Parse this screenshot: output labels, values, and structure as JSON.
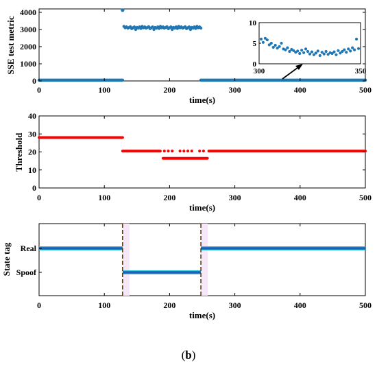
{
  "caption": {
    "prefix": "(",
    "label": "b",
    "suffix": ")"
  },
  "chart_data": [
    {
      "type": "scatter",
      "xlabel": "time(s)",
      "ylabel": "SSE test metric",
      "xlim": [
        0,
        500
      ],
      "ylim": [
        0,
        4200
      ],
      "xticks": [
        0,
        100,
        200,
        300,
        400,
        500
      ],
      "yticks": [
        0,
        1000,
        2000,
        3000,
        4000
      ],
      "color": "#1f77b4",
      "series": [
        {
          "segment": "real-1",
          "x_range": [
            0,
            128
          ],
          "y": 5
        },
        {
          "segment": "spike",
          "x": [
            128
          ],
          "y": [
            4130
          ]
        },
        {
          "segment": "spoof",
          "x_range": [
            130,
            248
          ],
          "y_approx": [
            3180,
            3100,
            3150,
            3080,
            3120,
            3160,
            3050,
            3100,
            3150,
            3000,
            3120,
            3080,
            3150,
            3060
          ]
        },
        {
          "segment": "real-2",
          "x_range": [
            248,
            500
          ],
          "y": 5
        }
      ],
      "inset": {
        "xlim": [
          300,
          350
        ],
        "ylim": [
          0,
          10
        ],
        "xticks": [
          300,
          350
        ],
        "yticks": [
          0,
          5,
          10
        ],
        "x": [
          301,
          302,
          303,
          304,
          305,
          306,
          307,
          308,
          309,
          310,
          311,
          312,
          313,
          314,
          315,
          316,
          317,
          318,
          319,
          320,
          321,
          322,
          323,
          324,
          325,
          326,
          327,
          328,
          329,
          330,
          331,
          332,
          333,
          334,
          335,
          336,
          337,
          338,
          339,
          340,
          341,
          342,
          343,
          344,
          345,
          346,
          347,
          348,
          349
        ],
        "y": [
          6.0,
          5.2,
          6.2,
          5.8,
          4.6,
          5.0,
          4.0,
          4.5,
          3.8,
          4.2,
          5.0,
          3.6,
          3.4,
          3.9,
          3.0,
          3.5,
          3.2,
          2.8,
          3.1,
          2.5,
          3.3,
          2.7,
          3.6,
          3.0,
          2.4,
          2.9,
          2.2,
          2.6,
          3.1,
          2.0,
          2.8,
          2.4,
          3.0,
          2.3,
          2.7,
          2.5,
          2.9,
          2.2,
          3.2,
          2.6,
          3.0,
          3.4,
          2.8,
          3.6,
          3.1,
          3.9,
          3.4,
          6.0,
          3.7
        ]
      }
    },
    {
      "type": "scatter",
      "xlabel": "time(s)",
      "ylabel": "Threshold",
      "xlim": [
        0,
        500
      ],
      "ylim": [
        0,
        40
      ],
      "xticks": [
        0,
        100,
        200,
        300,
        400,
        500
      ],
      "yticks": [
        0,
        10,
        20,
        30,
        40
      ],
      "color": "#ff0000",
      "series": [
        {
          "segment": "pre",
          "x_range": [
            0,
            128
          ],
          "y": 28
        },
        {
          "segment": "post",
          "x_range": [
            128,
            500
          ],
          "y": 20.5
        },
        {
          "segment": "lower",
          "x_range": [
            190,
            258
          ],
          "y": 16.5
        }
      ]
    },
    {
      "type": "line",
      "xlabel": "time(s)",
      "ylabel": "State tag",
      "xlim": [
        0,
        500
      ],
      "xticks": [
        0,
        100,
        200,
        300,
        400,
        500
      ],
      "yticks": [
        "Real",
        "Spoof"
      ],
      "color": "#1f5fb4",
      "change_points": [
        128,
        248
      ],
      "series": [
        {
          "state": "Real",
          "x_range": [
            0,
            128
          ]
        },
        {
          "state": "Spoof",
          "x_range": [
            128,
            248
          ]
        },
        {
          "state": "Real",
          "x_range": [
            248,
            500
          ]
        }
      ]
    }
  ]
}
